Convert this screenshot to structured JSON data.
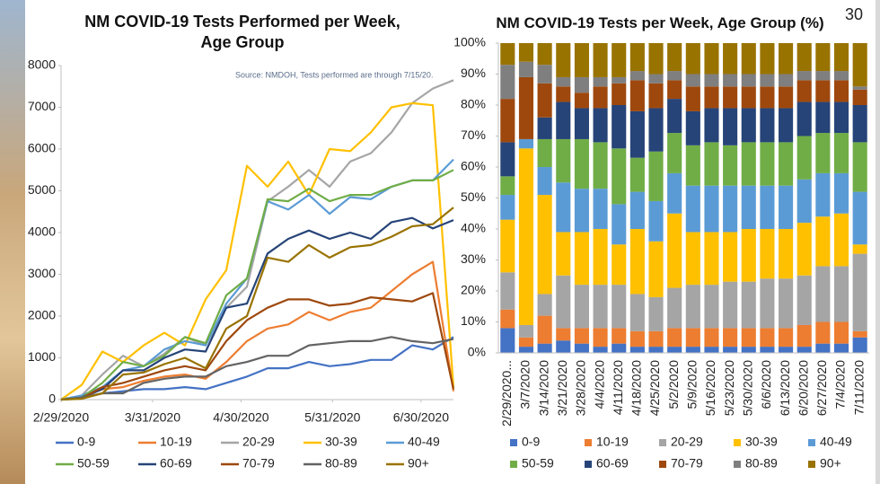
{
  "slide_number": "30",
  "chart_data": [
    {
      "type": "line",
      "title": "NM COVID-19 Tests Performed per Week, Age Group",
      "annotation": "Source: NMDOH, Tests performed are through 7/15/20.",
      "x": [
        "2/29/2020",
        "3/7/2020",
        "3/14/2020",
        "3/21/2020",
        "3/28/2020",
        "4/4/2020",
        "4/11/2020",
        "4/18/2020",
        "4/25/2020",
        "5/2/2020",
        "5/9/2020",
        "5/16/2020",
        "5/23/2020",
        "5/30/2020",
        "6/6/2020",
        "6/13/2020",
        "6/20/2020",
        "6/27/2020",
        "7/4/2020",
        "7/11/2020"
      ],
      "xlim": [
        "2/29/2020",
        "7/11/2020"
      ],
      "xticks": [
        "2/29/2020",
        "3/31/2020",
        "4/30/2020",
        "5/31/2020",
        "6/30/2020"
      ],
      "ylim": [
        0,
        8000
      ],
      "yticks": [
        0,
        1000,
        2000,
        3000,
        4000,
        5000,
        6000,
        7000,
        8000
      ],
      "series": [
        {
          "name": "0-9",
          "color": "#4472c4",
          "values": [
            0,
            30,
            150,
            200,
            250,
            250,
            300,
            250,
            400,
            550,
            750,
            750,
            900,
            800,
            850,
            950,
            950,
            1300,
            1200,
            1500
          ]
        },
        {
          "name": "10-19",
          "color": "#ed7d31",
          "values": [
            0,
            50,
            250,
            300,
            450,
            550,
            600,
            500,
            900,
            1400,
            1700,
            1800,
            2100,
            1900,
            2100,
            2200,
            2600,
            3000,
            3300,
            200
          ]
        },
        {
          "name": "20-29",
          "color": "#a5a5a5",
          "values": [
            0,
            100,
            600,
            1050,
            800,
            1100,
            1500,
            1300,
            2200,
            2700,
            4750,
            5100,
            5500,
            5100,
            5700,
            5900,
            6400,
            7100,
            7450,
            7650
          ]
        },
        {
          "name": "30-39",
          "color": "#ffc000",
          "values": [
            0,
            350,
            1150,
            900,
            1300,
            1600,
            1300,
            2400,
            3100,
            5600,
            5100,
            5700,
            4900,
            6000,
            5950,
            6400,
            7000,
            7100,
            7050,
            300
          ]
        },
        {
          "name": "40-49",
          "color": "#5b9bd5",
          "values": [
            0,
            100,
            300,
            700,
            800,
            1200,
            1400,
            1300,
            2300,
            2900,
            4750,
            4550,
            4900,
            4450,
            4850,
            4800,
            5100,
            5250,
            5250,
            5750
          ]
        },
        {
          "name": "50-59",
          "color": "#70ad47",
          "values": [
            0,
            50,
            400,
            900,
            800,
            1050,
            1500,
            1350,
            2500,
            2900,
            4800,
            4750,
            5050,
            4750,
            4900,
            4900,
            5100,
            5250,
            5250,
            5500
          ]
        },
        {
          "name": "60-69",
          "color": "#264478",
          "values": [
            0,
            50,
            250,
            700,
            700,
            1000,
            1200,
            1150,
            2200,
            2300,
            3500,
            3850,
            4050,
            3850,
            4000,
            3850,
            4250,
            4350,
            4100,
            4300
          ]
        },
        {
          "name": "70-79",
          "color": "#9e480e",
          "values": [
            0,
            30,
            300,
            400,
            550,
            700,
            800,
            700,
            1400,
            1900,
            2200,
            2400,
            2400,
            2250,
            2300,
            2450,
            2400,
            2350,
            2550,
            250
          ]
        },
        {
          "name": "80-89",
          "color": "#636363",
          "values": [
            0,
            50,
            150,
            150,
            400,
            500,
            550,
            550,
            800,
            900,
            1050,
            1050,
            1300,
            1350,
            1400,
            1400,
            1500,
            1400,
            1350,
            1450
          ]
        },
        {
          "name": "90+",
          "color": "#997300",
          "values": [
            0,
            20,
            150,
            600,
            650,
            850,
            1000,
            750,
            1700,
            2000,
            3400,
            3300,
            3700,
            3400,
            3650,
            3700,
            3900,
            4150,
            4200,
            4600
          ]
        }
      ]
    },
    {
      "type": "bar",
      "stacked": true,
      "title": "NM COVID-19 Tests per Week, Age Group (%)",
      "categories": [
        "2/29/2020...",
        "3/7/2020",
        "3/14/2020",
        "3/21/2020",
        "3/28/2020",
        "4/4/2020",
        "4/11/2020",
        "4/18/2020",
        "4/25/2020",
        "5/2/2020",
        "5/9/2020",
        "5/16/2020",
        "5/23/2020",
        "5/30/2020",
        "6/6/2020",
        "6/13/2020",
        "6/20/2020",
        "6/27/2020",
        "7/4/2020",
        "7/11/2020"
      ],
      "ylim": [
        0,
        100
      ],
      "yticks": [
        {
          "value": 0,
          "label": "0%"
        },
        {
          "value": 10,
          "label": "10%"
        },
        {
          "value": 20,
          "label": "20%"
        },
        {
          "value": 30,
          "label": "30%"
        },
        {
          "value": 40,
          "label": "40%"
        },
        {
          "value": 50,
          "label": "50%"
        },
        {
          "value": 60,
          "label": "60%"
        },
        {
          "value": 70,
          "label": "70%"
        },
        {
          "value": 80,
          "label": "80%"
        },
        {
          "value": 90,
          "label": "90%"
        },
        {
          "value": 100,
          "label": "100%"
        }
      ],
      "series": [
        {
          "name": "0-9",
          "color": "#4472c4",
          "values": [
            8,
            2,
            3,
            4,
            3,
            2,
            3,
            2,
            2,
            2,
            2,
            2,
            2,
            2,
            2,
            2,
            2,
            3,
            3,
            5
          ]
        },
        {
          "name": "10-19",
          "color": "#ed7d31",
          "values": [
            6,
            3,
            9,
            4,
            5,
            6,
            5,
            5,
            5,
            6,
            6,
            6,
            6,
            6,
            6,
            6,
            7,
            7,
            7,
            2
          ]
        },
        {
          "name": "20-29",
          "color": "#a5a5a5",
          "values": [
            12,
            4,
            7,
            17,
            14,
            14,
            14,
            12,
            11,
            13,
            14,
            14,
            15,
            15,
            16,
            16,
            16,
            18,
            18,
            25
          ]
        },
        {
          "name": "30-39",
          "color": "#ffc000",
          "values": [
            17,
            57,
            32,
            14,
            17,
            18,
            13,
            21,
            18,
            24,
            17,
            17,
            16,
            17,
            16,
            16,
            17,
            16,
            17,
            3
          ]
        },
        {
          "name": "40-49",
          "color": "#5b9bd5",
          "values": [
            8,
            3,
            9,
            16,
            14,
            13,
            13,
            12,
            13,
            13,
            15,
            15,
            15,
            14,
            14,
            14,
            14,
            14,
            13,
            17
          ]
        },
        {
          "name": "50-59",
          "color": "#70ad47",
          "values": [
            6,
            0,
            9,
            14,
            16,
            15,
            18,
            11,
            16,
            13,
            13,
            14,
            13,
            14,
            14,
            14,
            14,
            13,
            13,
            16
          ]
        },
        {
          "name": "60-69",
          "color": "#264478",
          "values": [
            11,
            0,
            7,
            12,
            10,
            11,
            14,
            15,
            14,
            11,
            11,
            11,
            12,
            11,
            11,
            11,
            11,
            10,
            10,
            12
          ]
        },
        {
          "name": "70-79",
          "color": "#9e480e",
          "values": [
            14,
            20,
            11,
            5,
            5,
            7,
            7,
            10,
            8,
            6,
            8,
            7,
            7,
            7,
            7,
            7,
            7,
            7,
            7,
            5
          ]
        },
        {
          "name": "80-89",
          "color": "#7f7f7f",
          "values": [
            11,
            5,
            6,
            3,
            5,
            3,
            2,
            3,
            3,
            3,
            4,
            4,
            4,
            4,
            4,
            4,
            3,
            3,
            3,
            1
          ]
        },
        {
          "name": "90+",
          "color": "#997300",
          "values": [
            7,
            6,
            7,
            11,
            11,
            11,
            11,
            9,
            10,
            9,
            10,
            10,
            10,
            10,
            10,
            10,
            9,
            9,
            9,
            14
          ]
        }
      ]
    }
  ]
}
